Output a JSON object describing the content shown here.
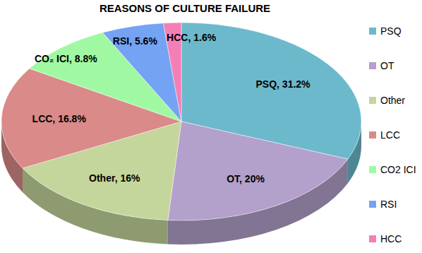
{
  "chart_data": {
    "type": "pie",
    "title": "REASONS OF CULTURE FAILURE",
    "categories": [
      "PSQ",
      "OT",
      "Other",
      "LCC",
      "CO2 ICI",
      "RSI",
      "HCC"
    ],
    "values": [
      31.2,
      20,
      16,
      16.8,
      8.8,
      5.6,
      1.6
    ],
    "value_labels": [
      "PSQ, 31.2%",
      "OT, 20%",
      "Other, 16%",
      "LCC, 16.8%",
      "CO₂ ICI, 8.8%",
      "RSI, 5.6%",
      "HCC, 1.6%"
    ],
    "colors": [
      "#6cb9cc",
      "#b3a0cb",
      "#c4d69b",
      "#d98a89",
      "#a0f9a2",
      "#74a3f3",
      "#f47fb6"
    ],
    "data_labels": true,
    "legend": "right"
  }
}
